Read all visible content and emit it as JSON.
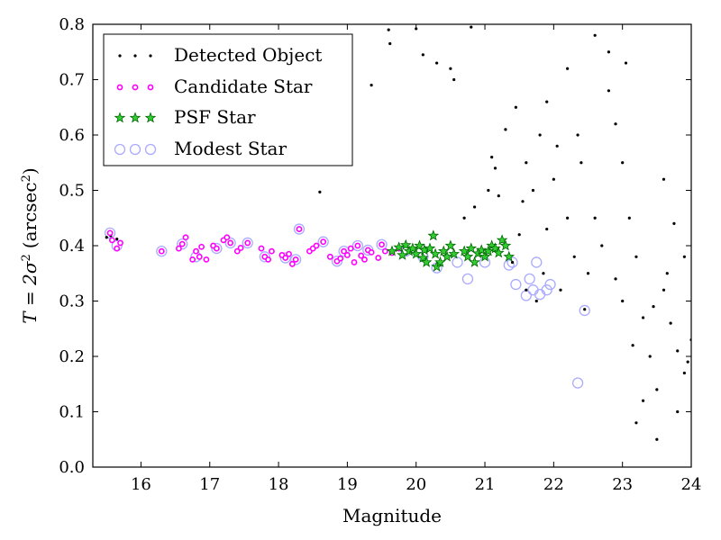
{
  "chart_data": {
    "type": "scatter",
    "title": "",
    "xlabel": "Magnitude",
    "ylabel_main": "T = 2σ",
    "ylabel_sup": "2",
    "ylabel_unit": "(arcsec",
    "ylabel_unit_sup": "2",
    "ylabel_close": ")",
    "xlim": [
      15.3,
      24.0
    ],
    "ylim": [
      0.0,
      0.8
    ],
    "xticks": [
      16,
      17,
      18,
      19,
      20,
      21,
      22,
      23,
      24
    ],
    "yticks": [
      0.0,
      0.1,
      0.2,
      0.3,
      0.4,
      0.5,
      0.6,
      0.7,
      0.8
    ],
    "grid": false,
    "legend_position": "top-left",
    "series": [
      {
        "name": "Detected Object",
        "marker": "dot",
        "color": "#000000",
        "points": [
          [
            15.5,
            0.415
          ],
          [
            15.56,
            0.418
          ],
          [
            15.6,
            0.41
          ],
          [
            15.65,
            0.412
          ],
          [
            15.7,
            0.407
          ],
          [
            18.6,
            0.497
          ],
          [
            18.5,
            0.735
          ],
          [
            19.05,
            0.692
          ],
          [
            19.35,
            0.69
          ],
          [
            19.6,
            0.79
          ],
          [
            19.62,
            0.765
          ],
          [
            20.0,
            0.792
          ],
          [
            20.1,
            0.745
          ],
          [
            20.3,
            0.73
          ],
          [
            20.5,
            0.72
          ],
          [
            20.55,
            0.7
          ],
          [
            20.8,
            0.795
          ],
          [
            21.3,
            0.61
          ],
          [
            21.1,
            0.56
          ],
          [
            21.15,
            0.54
          ],
          [
            21.2,
            0.49
          ],
          [
            21.05,
            0.5
          ],
          [
            20.85,
            0.47
          ],
          [
            20.7,
            0.45
          ],
          [
            21.6,
            0.55
          ],
          [
            21.7,
            0.5
          ],
          [
            21.9,
            0.43
          ],
          [
            22.0,
            0.52
          ],
          [
            22.2,
            0.45
          ],
          [
            22.5,
            0.35
          ],
          [
            22.45,
            0.285
          ],
          [
            22.6,
            0.45
          ],
          [
            22.7,
            0.4
          ],
          [
            22.9,
            0.34
          ],
          [
            23.0,
            0.3
          ],
          [
            23.1,
            0.45
          ],
          [
            23.2,
            0.38
          ],
          [
            23.3,
            0.27
          ],
          [
            23.4,
            0.2
          ],
          [
            23.5,
            0.14
          ],
          [
            23.6,
            0.32
          ],
          [
            23.7,
            0.26
          ],
          [
            23.8,
            0.21
          ],
          [
            23.9,
            0.17
          ],
          [
            23.95,
            0.19
          ],
          [
            23.2,
            0.08
          ],
          [
            23.5,
            0.05
          ],
          [
            23.8,
            0.1
          ],
          [
            23.3,
            0.12
          ],
          [
            22.9,
            0.62
          ],
          [
            23.0,
            0.55
          ],
          [
            22.8,
            0.68
          ],
          [
            23.05,
            0.73
          ],
          [
            23.6,
            0.52
          ],
          [
            23.75,
            0.44
          ],
          [
            23.9,
            0.38
          ],
          [
            24.0,
            0.23
          ],
          [
            21.45,
            0.65
          ],
          [
            21.5,
            0.42
          ],
          [
            21.4,
            0.37
          ],
          [
            21.6,
            0.32
          ],
          [
            21.75,
            0.3
          ],
          [
            21.85,
            0.35
          ],
          [
            22.1,
            0.32
          ],
          [
            22.3,
            0.38
          ],
          [
            22.35,
            0.6
          ],
          [
            21.9,
            0.66
          ],
          [
            22.2,
            0.72
          ],
          [
            22.6,
            0.78
          ],
          [
            22.8,
            0.75
          ],
          [
            22.4,
            0.55
          ],
          [
            22.05,
            0.58
          ],
          [
            21.8,
            0.6
          ],
          [
            21.55,
            0.48
          ],
          [
            23.45,
            0.29
          ],
          [
            23.65,
            0.35
          ],
          [
            23.15,
            0.22
          ]
        ]
      },
      {
        "name": "Candidate Star",
        "marker": "small-circle",
        "color": "#ff00ff",
        "points": [
          [
            15.55,
            0.423
          ],
          [
            15.58,
            0.41
          ],
          [
            15.65,
            0.395
          ],
          [
            15.7,
            0.405
          ],
          [
            16.3,
            0.39
          ],
          [
            16.55,
            0.395
          ],
          [
            16.6,
            0.403
          ],
          [
            16.65,
            0.415
          ],
          [
            16.75,
            0.375
          ],
          [
            16.8,
            0.39
          ],
          [
            16.85,
            0.38
          ],
          [
            16.88,
            0.398
          ],
          [
            16.95,
            0.375
          ],
          [
            17.05,
            0.4
          ],
          [
            17.1,
            0.395
          ],
          [
            17.2,
            0.41
          ],
          [
            17.25,
            0.415
          ],
          [
            17.3,
            0.405
          ],
          [
            17.4,
            0.39
          ],
          [
            17.45,
            0.396
          ],
          [
            17.55,
            0.405
          ],
          [
            17.75,
            0.395
          ],
          [
            17.8,
            0.38
          ],
          [
            17.85,
            0.375
          ],
          [
            17.9,
            0.39
          ],
          [
            18.05,
            0.383
          ],
          [
            18.1,
            0.378
          ],
          [
            18.15,
            0.385
          ],
          [
            18.2,
            0.367
          ],
          [
            18.25,
            0.375
          ],
          [
            18.3,
            0.43
          ],
          [
            18.45,
            0.39
          ],
          [
            18.5,
            0.395
          ],
          [
            18.55,
            0.4
          ],
          [
            18.65,
            0.407
          ],
          [
            18.75,
            0.38
          ],
          [
            18.85,
            0.372
          ],
          [
            18.9,
            0.377
          ],
          [
            18.95,
            0.39
          ],
          [
            19.0,
            0.383
          ],
          [
            19.05,
            0.395
          ],
          [
            19.1,
            0.37
          ],
          [
            19.15,
            0.4
          ],
          [
            19.2,
            0.382
          ],
          [
            19.25,
            0.375
          ],
          [
            19.3,
            0.392
          ],
          [
            19.35,
            0.388
          ],
          [
            19.45,
            0.378
          ],
          [
            19.5,
            0.402
          ],
          [
            19.55,
            0.39
          ],
          [
            19.65,
            0.387
          ],
          [
            19.75,
            0.395
          ]
        ]
      },
      {
        "name": "PSF Star",
        "marker": "star",
        "color": "#33cc33",
        "points": [
          [
            19.65,
            0.39
          ],
          [
            19.75,
            0.397
          ],
          [
            19.8,
            0.383
          ],
          [
            19.85,
            0.401
          ],
          [
            19.9,
            0.39
          ],
          [
            19.95,
            0.395
          ],
          [
            20.0,
            0.385
          ],
          [
            20.05,
            0.4
          ],
          [
            20.1,
            0.378
          ],
          [
            20.12,
            0.392
          ],
          [
            20.15,
            0.37
          ],
          [
            20.2,
            0.395
          ],
          [
            20.25,
            0.418
          ],
          [
            20.28,
            0.385
          ],
          [
            20.3,
            0.362
          ],
          [
            20.35,
            0.37
          ],
          [
            20.4,
            0.39
          ],
          [
            20.45,
            0.38
          ],
          [
            20.5,
            0.4
          ],
          [
            20.55,
            0.385
          ],
          [
            20.7,
            0.39
          ],
          [
            20.75,
            0.38
          ],
          [
            20.8,
            0.395
          ],
          [
            20.85,
            0.37
          ],
          [
            20.9,
            0.386
          ],
          [
            20.95,
            0.392
          ],
          [
            21.0,
            0.38
          ],
          [
            21.05,
            0.39
          ],
          [
            21.1,
            0.4
          ],
          [
            21.15,
            0.395
          ],
          [
            21.2,
            0.387
          ],
          [
            21.25,
            0.41
          ],
          [
            21.3,
            0.4
          ],
          [
            21.35,
            0.38
          ]
        ]
      },
      {
        "name": "Modest Star",
        "marker": "open-circle",
        "color": "#aaaaff",
        "points": [
          [
            15.55,
            0.423
          ],
          [
            15.65,
            0.4
          ],
          [
            16.3,
            0.39
          ],
          [
            16.6,
            0.403
          ],
          [
            16.8,
            0.38
          ],
          [
            17.1,
            0.395
          ],
          [
            17.3,
            0.405
          ],
          [
            17.55,
            0.405
          ],
          [
            17.8,
            0.38
          ],
          [
            18.1,
            0.378
          ],
          [
            18.25,
            0.375
          ],
          [
            18.3,
            0.43
          ],
          [
            18.65,
            0.407
          ],
          [
            18.85,
            0.372
          ],
          [
            18.95,
            0.39
          ],
          [
            19.15,
            0.4
          ],
          [
            19.3,
            0.392
          ],
          [
            19.5,
            0.402
          ],
          [
            19.85,
            0.39
          ],
          [
            20.1,
            0.38
          ],
          [
            20.3,
            0.36
          ],
          [
            20.6,
            0.37
          ],
          [
            20.75,
            0.34
          ],
          [
            21.0,
            0.37
          ],
          [
            21.35,
            0.365
          ],
          [
            21.4,
            0.37
          ],
          [
            21.45,
            0.33
          ],
          [
            21.6,
            0.31
          ],
          [
            21.65,
            0.34
          ],
          [
            21.7,
            0.32
          ],
          [
            21.75,
            0.37
          ],
          [
            21.8,
            0.312
          ],
          [
            21.9,
            0.32
          ],
          [
            21.95,
            0.33
          ],
          [
            22.35,
            0.152
          ],
          [
            22.45,
            0.283
          ]
        ]
      }
    ]
  }
}
